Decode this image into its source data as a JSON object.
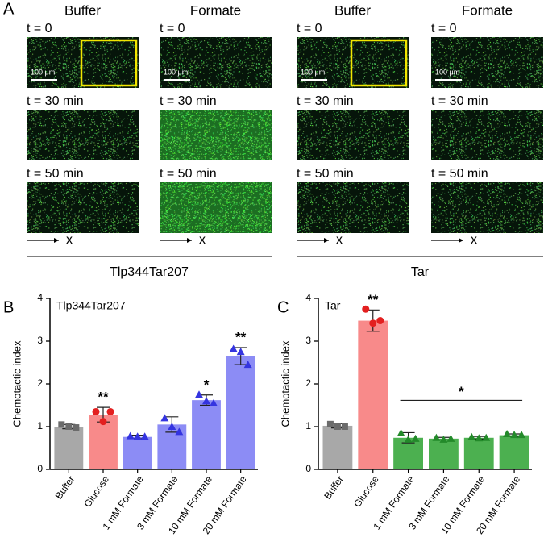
{
  "panel_labels": [
    "A",
    "B",
    "C"
  ],
  "panel_a": {
    "groups": [
      {
        "name": "Tlp344Tar207",
        "columns": [
          "Buffer",
          "Formate"
        ]
      },
      {
        "name": "Tar",
        "columns": [
          "Buffer",
          "Formate"
        ]
      }
    ],
    "times": [
      "t = 0",
      "t = 30 min",
      "t = 50 min"
    ],
    "scale_bar": "100 μm",
    "axis_label": "x"
  },
  "chart_data": [
    {
      "type": "bar",
      "title": "Tlp344Tar207",
      "y_label": "Chemotactic index",
      "categories": [
        "Buffer",
        "Glucose",
        "1 mM Formate",
        "3 mM Formate",
        "10 mM Formate",
        "20 mM Formate"
      ],
      "values": [
        1.0,
        1.28,
        0.76,
        1.05,
        1.62,
        2.65
      ],
      "errors": [
        0.05,
        0.17,
        0.04,
        0.18,
        0.12,
        0.2
      ],
      "points": [
        [
          1.05,
          1.0,
          0.98
        ],
        [
          1.35,
          1.12,
          1.35
        ],
        [
          0.78,
          0.77,
          0.77
        ],
        [
          1.2,
          1.0,
          0.88
        ],
        [
          1.75,
          1.6,
          1.55
        ],
        [
          2.82,
          2.75,
          2.45
        ]
      ],
      "colors": [
        "#a8a8a8",
        "#f88a8a",
        "#8c8cf5",
        "#8c8cf5",
        "#8c8cf5",
        "#8c8cf5"
      ],
      "point_colors": [
        "#6b6b6b",
        "#e32020",
        "#3434e0",
        "#3434e0",
        "#3434e0",
        "#3434e0"
      ],
      "markers": [
        "square",
        "circle",
        "triangle",
        "triangle",
        "triangle",
        "triangle"
      ],
      "significance_labels": [
        null,
        "**",
        null,
        null,
        "*",
        "**"
      ],
      "ylim": [
        0,
        4
      ],
      "yticks": [
        0,
        1,
        2,
        3,
        4
      ]
    },
    {
      "type": "bar",
      "title": "Tar",
      "y_label": "Chemotactic index",
      "categories": [
        "Buffer",
        "Glucose",
        "1 mM Formate",
        "3 mM Formate",
        "10 mM Formate",
        "20 mM Formate"
      ],
      "values": [
        1.02,
        3.48,
        0.74,
        0.72,
        0.74,
        0.8
      ],
      "errors": [
        0.05,
        0.25,
        0.12,
        0.03,
        0.03,
        0.03
      ],
      "points": [
        [
          1.06,
          1.0,
          1.0
        ],
        [
          3.75,
          3.42,
          3.48
        ],
        [
          0.85,
          0.7,
          0.72
        ],
        [
          0.74,
          0.7,
          0.72
        ],
        [
          0.76,
          0.73,
          0.74
        ],
        [
          0.83,
          0.81,
          0.81
        ]
      ],
      "colors": [
        "#a8a8a8",
        "#f88a8a",
        "#4cb050",
        "#4cb050",
        "#4cb050",
        "#4cb050"
      ],
      "point_colors": [
        "#6b6b6b",
        "#e32020",
        "#238a2a",
        "#238a2a",
        "#238a2a",
        "#238a2a"
      ],
      "markers": [
        "square",
        "circle",
        "triangle",
        "triangle",
        "triangle",
        "triangle"
      ],
      "significance_labels": [
        null,
        "**",
        null,
        null,
        null,
        null
      ],
      "bracket": {
        "label": "*",
        "from": 2,
        "to": 5
      },
      "ylim": [
        0,
        4
      ],
      "yticks": [
        0,
        1,
        2,
        3,
        4
      ]
    }
  ]
}
